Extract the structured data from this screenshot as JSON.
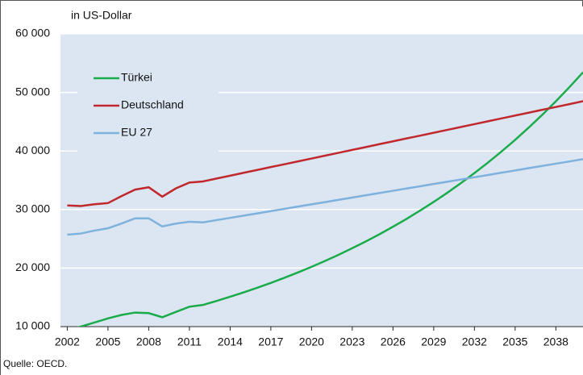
{
  "chart_data": {
    "type": "line",
    "y_label": "in US-Dollar",
    "source": "Quelle: OECD.",
    "x": [
      2002,
      2003,
      2004,
      2005,
      2006,
      2007,
      2008,
      2009,
      2010,
      2011,
      2012,
      2013,
      2014,
      2015,
      2016,
      2017,
      2018,
      2019,
      2020,
      2021,
      2022,
      2023,
      2024,
      2025,
      2026,
      2027,
      2028,
      2029,
      2030,
      2031,
      2032,
      2033,
      2034,
      2035,
      2036,
      2037,
      2038,
      2039,
      2040
    ],
    "series": [
      {
        "name": "Türkei",
        "color": "#1aab4b",
        "values": [
          9400,
          10000,
          10700,
          11400,
          12000,
          12400,
          12300,
          11600,
          12500,
          13400,
          13700,
          14380,
          15100,
          15850,
          16640,
          17470,
          18340,
          19250,
          20210,
          21220,
          22280,
          23390,
          24550,
          25770,
          27060,
          28400,
          29820,
          31300,
          32860,
          34500,
          36220,
          38020,
          39920,
          41900,
          43990,
          46180,
          48480,
          50900,
          53430
        ]
      },
      {
        "name": "Deutschland",
        "color": "#c0282e",
        "values": [
          30700,
          30600,
          30900,
          31100,
          32300,
          33400,
          33800,
          32200,
          33600,
          34600,
          34800,
          35290,
          35780,
          36270,
          36760,
          37250,
          37730,
          38220,
          38710,
          39200,
          39690,
          40180,
          40670,
          41160,
          41650,
          42140,
          42620,
          43110,
          43600,
          44090,
          44580,
          45070,
          45560,
          46050,
          46540,
          47030,
          47510,
          48000,
          48500
        ]
      },
      {
        "name": "EU 27",
        "color": "#7fb1dd",
        "values": [
          25700,
          25900,
          26400,
          26800,
          27600,
          28500,
          28500,
          27100,
          27600,
          27900,
          27800,
          28190,
          28570,
          28960,
          29340,
          29730,
          30110,
          30500,
          30890,
          31270,
          31660,
          32040,
          32430,
          32810,
          33200,
          33590,
          33970,
          34360,
          34740,
          35130,
          35510,
          35900,
          36290,
          36670,
          37060,
          37440,
          37830,
          38210,
          38600
        ]
      }
    ],
    "xlim": [
      2001.5,
      2040
    ],
    "xticks": [
      2002,
      2005,
      2008,
      2011,
      2014,
      2017,
      2020,
      2023,
      2026,
      2029,
      2032,
      2035,
      2038
    ],
    "ylim": [
      10000,
      60000
    ],
    "yticks": [
      {
        "value": 10000,
        "label": "10 000"
      },
      {
        "value": 20000,
        "label": "20 000"
      },
      {
        "value": 30000,
        "label": "30 000"
      },
      {
        "value": 40000,
        "label": "40 000"
      },
      {
        "value": 50000,
        "label": "50 000"
      },
      {
        "value": 60000,
        "label": "60 000"
      }
    ],
    "grid": true
  }
}
